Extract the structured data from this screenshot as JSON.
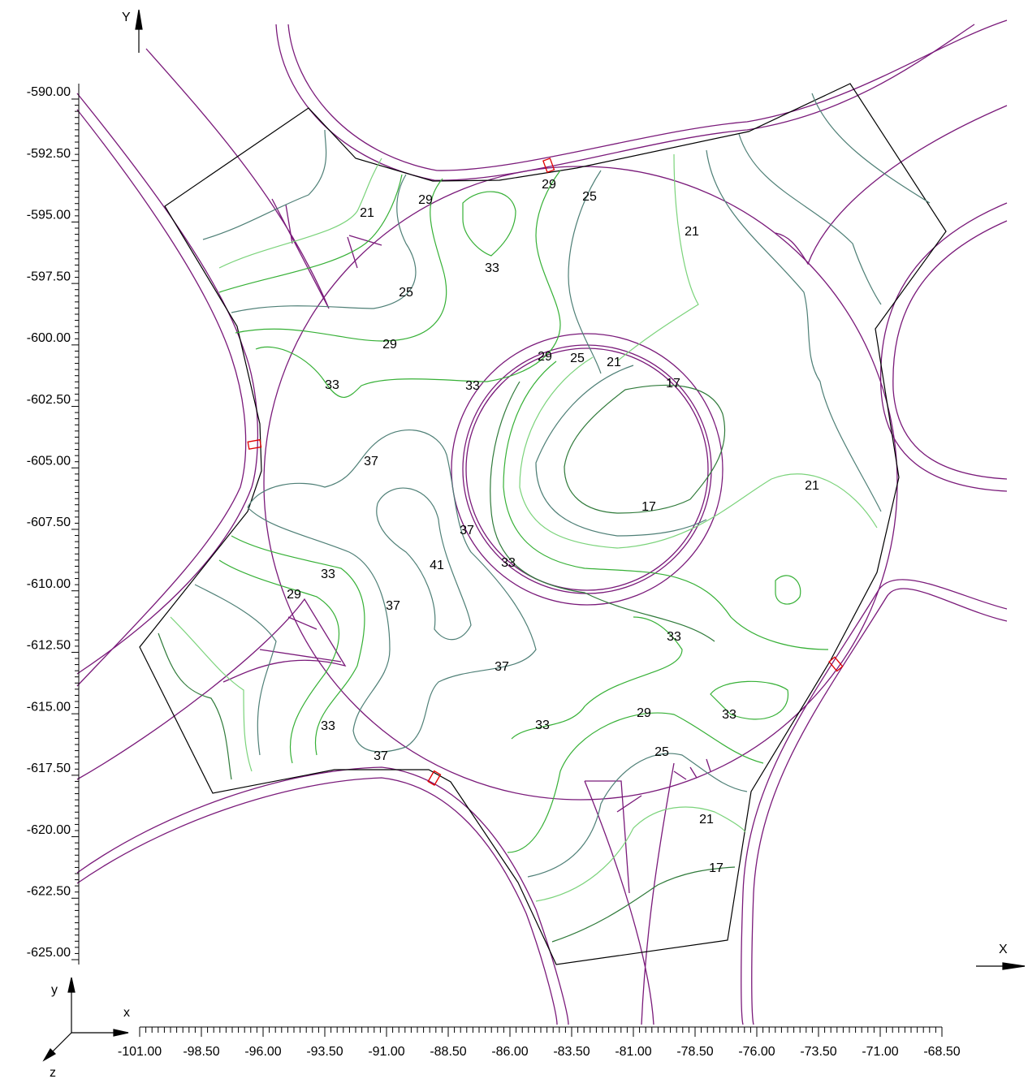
{
  "axes": {
    "y_label": "Y",
    "x_label": "X",
    "ylim": [
      -625,
      -590
    ],
    "xlim": [
      -101,
      -68.5
    ],
    "yticks": [
      {
        "value": -590,
        "label": "-590.00"
      },
      {
        "value": -592.5,
        "label": "-592.50"
      },
      {
        "value": -595,
        "label": "-595.00"
      },
      {
        "value": -597.5,
        "label": "-597.50"
      },
      {
        "value": -600,
        "label": "-600.00"
      },
      {
        "value": -602.5,
        "label": "-602.50"
      },
      {
        "value": -605,
        "label": "-605.00"
      },
      {
        "value": -607.5,
        "label": "-607.50"
      },
      {
        "value": -610,
        "label": "-610.00"
      },
      {
        "value": -612.5,
        "label": "-612.50"
      },
      {
        "value": -615,
        "label": "-615.00"
      },
      {
        "value": -617.5,
        "label": "-617.50"
      },
      {
        "value": -620,
        "label": "-620.00"
      },
      {
        "value": -622.5,
        "label": "-622.50"
      },
      {
        "value": -625,
        "label": "-625.00"
      }
    ],
    "xticks": [
      {
        "value": -101,
        "label": "-101.00"
      },
      {
        "value": -98.5,
        "label": "-98.50"
      },
      {
        "value": -96,
        "label": "-96.00"
      },
      {
        "value": -93.5,
        "label": "-93.50"
      },
      {
        "value": -91,
        "label": "-91.00"
      },
      {
        "value": -88.5,
        "label": "-88.50"
      },
      {
        "value": -86,
        "label": "-86.00"
      },
      {
        "value": -83.5,
        "label": "-83.50"
      },
      {
        "value": -81,
        "label": "-81.00"
      },
      {
        "value": -78.5,
        "label": "-78.50"
      },
      {
        "value": -76,
        "label": "-76.00"
      },
      {
        "value": -73.5,
        "label": "-73.50"
      },
      {
        "value": -71,
        "label": "-71.00"
      },
      {
        "value": -68.5,
        "label": "-68.50"
      }
    ]
  },
  "triad": {
    "x": "x",
    "y": "y",
    "z": "z"
  },
  "contour_labels": [
    21,
    29,
    29,
    25,
    21,
    33,
    25,
    29,
    29,
    25,
    21,
    17,
    33,
    33,
    37,
    21,
    17,
    37,
    41,
    33,
    33,
    29,
    37,
    33,
    37,
    29,
    33,
    33,
    33,
    37,
    25,
    21,
    17
  ]
}
